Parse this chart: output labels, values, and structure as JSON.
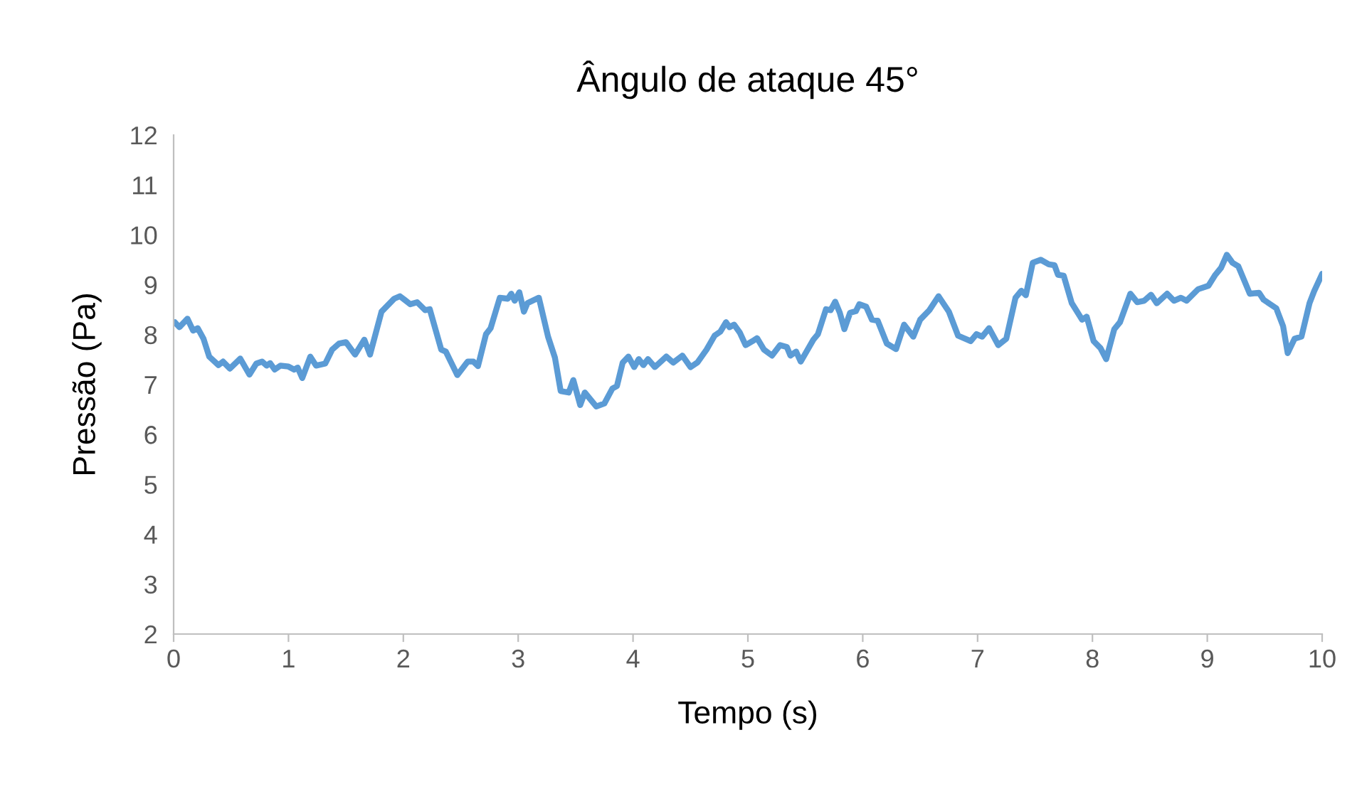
{
  "chart_data": {
    "type": "line",
    "title": "Ângulo de ataque 45°",
    "xlabel": "Tempo (s)",
    "ylabel": "Pressão (Pa)",
    "xlim": [
      0,
      10
    ],
    "xticks": [
      0,
      1,
      2,
      3,
      4,
      5,
      6,
      7,
      8,
      9,
      10
    ],
    "ylim": [
      2,
      12
    ],
    "yticks": [
      2,
      3,
      4,
      5,
      6,
      7,
      8,
      9,
      10,
      11,
      12
    ],
    "grid": false,
    "legend": false,
    "marker": "none",
    "line_style": "solid",
    "series": [
      {
        "color": "#5b9bd5",
        "x": [
          0.01,
          0.05,
          0.12,
          0.17,
          0.21,
          0.26,
          0.31,
          0.39,
          0.43,
          0.49,
          0.58,
          0.66,
          0.72,
          0.77,
          0.81,
          0.84,
          0.88,
          0.93,
          1.0,
          1.05,
          1.08,
          1.12,
          1.19,
          1.24,
          1.32,
          1.38,
          1.44,
          1.5,
          1.58,
          1.66,
          1.71,
          1.81,
          1.92,
          1.97,
          2.01,
          2.06,
          2.12,
          2.19,
          2.23,
          2.33,
          2.37,
          2.47,
          2.56,
          2.61,
          2.65,
          2.72,
          2.76,
          2.84,
          2.91,
          2.94,
          2.97,
          3.01,
          3.05,
          3.08,
          3.18,
          3.26,
          3.32,
          3.37,
          3.44,
          3.48,
          3.54,
          3.58,
          3.68,
          3.75,
          3.82,
          3.86,
          3.91,
          3.96,
          4.01,
          4.05,
          4.09,
          4.13,
          4.19,
          4.29,
          4.35,
          4.43,
          4.5,
          4.56,
          4.64,
          4.71,
          4.76,
          4.81,
          4.84,
          4.88,
          4.93,
          4.98,
          5.04,
          5.08,
          5.14,
          5.21,
          5.28,
          5.34,
          5.37,
          5.42,
          5.46,
          5.57,
          5.61,
          5.68,
          5.72,
          5.76,
          5.8,
          5.84,
          5.89,
          5.94,
          5.97,
          6.03,
          6.08,
          6.13,
          6.21,
          6.29,
          6.36,
          6.44,
          6.5,
          6.58,
          6.66,
          6.75,
          6.83,
          6.94,
          6.99,
          7.04,
          7.1,
          7.18,
          7.25,
          7.33,
          7.38,
          7.42,
          7.48,
          7.55,
          7.62,
          7.67,
          7.7,
          7.75,
          7.82,
          7.91,
          7.95,
          8.01,
          8.07,
          8.12,
          8.19,
          8.24,
          8.33,
          8.39,
          8.45,
          8.51,
          8.56,
          8.65,
          8.71,
          8.77,
          8.82,
          8.92,
          9.01,
          9.07,
          9.12,
          9.17,
          9.22,
          9.27,
          9.37,
          9.45,
          9.49,
          9.6,
          9.66,
          9.7,
          9.76,
          9.82,
          9.89,
          9.93,
          10.0
        ],
        "values": [
          8.25,
          8.15,
          8.32,
          8.08,
          8.13,
          7.92,
          7.56,
          7.39,
          7.46,
          7.32,
          7.52,
          7.2,
          7.42,
          7.46,
          7.38,
          7.43,
          7.3,
          7.38,
          7.36,
          7.3,
          7.34,
          7.13,
          7.56,
          7.38,
          7.42,
          7.7,
          7.82,
          7.85,
          7.6,
          7.9,
          7.6,
          8.46,
          8.72,
          8.77,
          8.7,
          8.61,
          8.65,
          8.49,
          8.51,
          7.7,
          7.66,
          7.19,
          7.46,
          7.46,
          7.37,
          8.01,
          8.13,
          8.74,
          8.72,
          8.82,
          8.68,
          8.85,
          8.46,
          8.63,
          8.74,
          7.96,
          7.54,
          6.87,
          6.84,
          7.09,
          6.59,
          6.84,
          6.56,
          6.62,
          6.92,
          6.97,
          7.44,
          7.56,
          7.35,
          7.51,
          7.39,
          7.51,
          7.35,
          7.56,
          7.44,
          7.58,
          7.35,
          7.44,
          7.7,
          7.98,
          8.06,
          8.25,
          8.15,
          8.2,
          8.04,
          7.79,
          7.87,
          7.93,
          7.7,
          7.58,
          7.79,
          7.75,
          7.58,
          7.66,
          7.46,
          7.9,
          8.01,
          8.51,
          8.49,
          8.66,
          8.44,
          8.11,
          8.44,
          8.47,
          8.61,
          8.56,
          8.3,
          8.28,
          7.82,
          7.71,
          8.2,
          7.96,
          8.3,
          8.49,
          8.77,
          8.46,
          7.98,
          7.87,
          8.01,
          7.96,
          8.13,
          7.79,
          7.92,
          8.74,
          8.88,
          8.79,
          9.44,
          9.5,
          9.41,
          9.39,
          9.2,
          9.18,
          8.63,
          8.3,
          8.36,
          7.87,
          7.73,
          7.51,
          8.11,
          8.25,
          8.82,
          8.65,
          8.68,
          8.8,
          8.63,
          8.82,
          8.68,
          8.74,
          8.68,
          8.91,
          8.98,
          9.2,
          9.34,
          9.6,
          9.44,
          9.37,
          8.82,
          8.84,
          8.7,
          8.53,
          8.17,
          7.63,
          7.92,
          7.96,
          8.63,
          8.87,
          9.22
        ]
      }
    ]
  }
}
